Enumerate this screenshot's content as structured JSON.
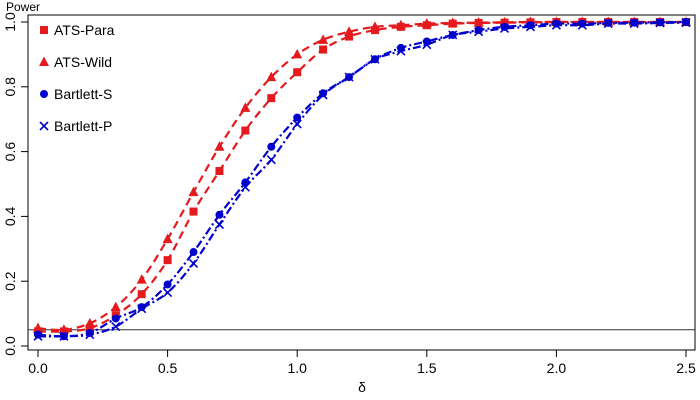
{
  "chart_data": {
    "type": "line",
    "title": "",
    "xlabel": "δ",
    "ylabel": "Power",
    "xlim": [
      0,
      2.5
    ],
    "ylim": [
      0,
      1
    ],
    "x_ticks": [
      "0.0",
      "0.5",
      "1.0",
      "1.5",
      "2.0",
      "2.5"
    ],
    "y_ticks": [
      "0.0",
      "0.2",
      "0.4",
      "0.6",
      "0.8",
      "1.0"
    ],
    "grid": false,
    "legend_position": "top-left",
    "reference_line": {
      "y": 0.05,
      "color": "#333333"
    },
    "x": [
      0,
      0.1,
      0.2,
      0.3,
      0.4,
      0.5,
      0.6,
      0.7,
      0.8,
      0.9,
      1.0,
      1.1,
      1.2,
      1.3,
      1.4,
      1.5,
      1.6,
      1.7,
      1.8,
      1.9,
      2.0,
      2.1,
      2.2,
      2.3,
      2.4,
      2.5
    ],
    "series": [
      {
        "name": "ATS-Para",
        "color": "#e41a1c",
        "marker": "square",
        "dash": "8,5",
        "values": [
          0.045,
          0.045,
          0.055,
          0.095,
          0.16,
          0.265,
          0.415,
          0.54,
          0.665,
          0.765,
          0.845,
          0.915,
          0.955,
          0.975,
          0.985,
          0.99,
          0.995,
          0.997,
          0.998,
          0.999,
          1.0,
          1.0,
          1.0,
          1.0,
          1.0,
          1.0
        ]
      },
      {
        "name": "ATS-Wild",
        "color": "#e41a1c",
        "marker": "triangle",
        "dash": "8,5",
        "values": [
          0.055,
          0.05,
          0.07,
          0.12,
          0.205,
          0.33,
          0.475,
          0.615,
          0.735,
          0.83,
          0.9,
          0.945,
          0.97,
          0.985,
          0.99,
          0.995,
          0.997,
          0.998,
          0.999,
          1.0,
          1.0,
          1.0,
          1.0,
          1.0,
          1.0,
          1.0
        ]
      },
      {
        "name": "Bartlett-S",
        "color": "#0000cc",
        "marker": "circle",
        "dash": "8,3,2,3",
        "values": [
          0.035,
          0.03,
          0.04,
          0.085,
          0.12,
          0.19,
          0.29,
          0.405,
          0.505,
          0.615,
          0.705,
          0.78,
          0.83,
          0.885,
          0.92,
          0.94,
          0.96,
          0.975,
          0.985,
          0.99,
          0.995,
          0.995,
          0.997,
          0.998,
          0.999,
          1.0
        ]
      },
      {
        "name": "Bartlett-P",
        "color": "#0000cc",
        "marker": "x",
        "dash": "8,3,2,3",
        "values": [
          0.03,
          0.03,
          0.035,
          0.06,
          0.115,
          0.165,
          0.255,
          0.375,
          0.49,
          0.575,
          0.685,
          0.775,
          0.83,
          0.885,
          0.91,
          0.93,
          0.96,
          0.97,
          0.98,
          0.985,
          0.99,
          0.99,
          0.995,
          0.995,
          0.997,
          0.998
        ]
      }
    ]
  }
}
